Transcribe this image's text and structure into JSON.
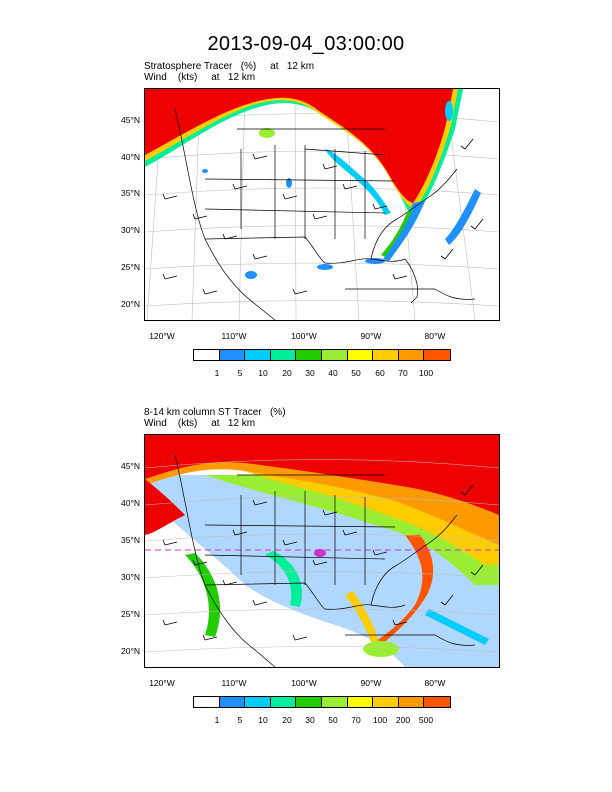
{
  "title": "2013-09-04_03:00:00",
  "panels": [
    {
      "subtitle_line1": "Stratosphere Tracer   (%)     at   12 km",
      "subtitle_line2": "Wind    (kts)     at   12 km",
      "lat_labels": [
        "45°N",
        "40°N",
        "35°N",
        "30°N",
        "25°N",
        "20°N"
      ],
      "lon_labels": [
        "120°W",
        "110°W",
        "100°W",
        "90°W",
        "80°W"
      ],
      "colorbar_labels": [
        "1",
        "5",
        "10",
        "20",
        "30",
        "40",
        "50",
        "60",
        "70",
        "100"
      ],
      "colorbar_colors": [
        "#ffffff",
        "#1e90ff",
        "#00ccff",
        "#00ee99",
        "#22cc00",
        "#99ee33",
        "#ffff00",
        "#ffcc00",
        "#ff9900",
        "#ff5500",
        "#ee0000"
      ]
    },
    {
      "subtitle_line1": "8-14 km column ST Tracer   (%)",
      "subtitle_line2": "Wind    (kts)     at   12 km",
      "lat_labels": [
        "45°N",
        "40°N",
        "35°N",
        "30°N",
        "25°N",
        "20°N"
      ],
      "lon_labels": [
        "120°W",
        "110°W",
        "100°W",
        "90°W",
        "80°W"
      ],
      "colorbar_labels": [
        "1",
        "5",
        "10",
        "20",
        "30",
        "50",
        "70",
        "100",
        "200",
        "500"
      ],
      "colorbar_colors": [
        "#ffffff",
        "#1e90ff",
        "#00ccff",
        "#00ee99",
        "#22cc00",
        "#99ee33",
        "#ffff00",
        "#ffcc00",
        "#ff9900",
        "#ff5500",
        "#ee0000"
      ]
    }
  ]
}
